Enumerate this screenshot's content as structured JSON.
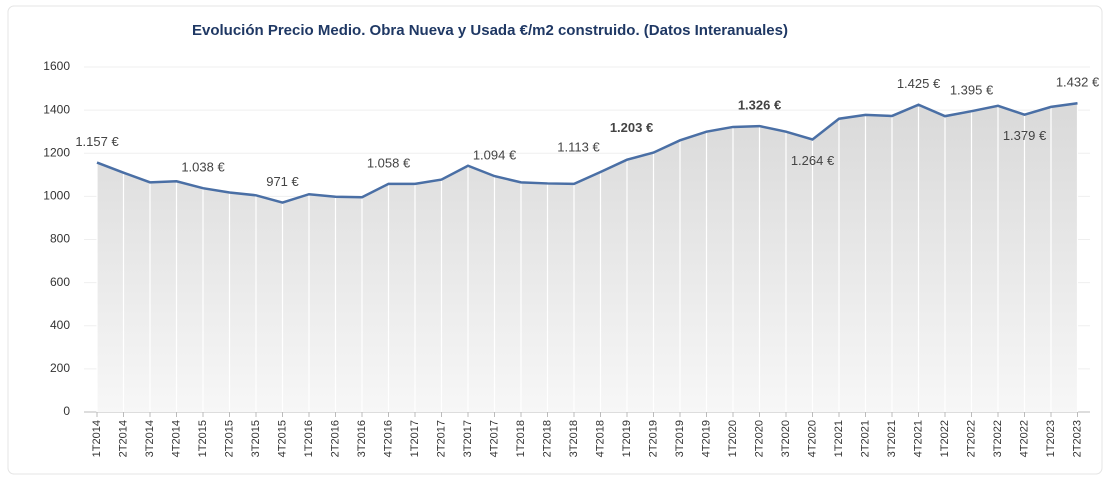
{
  "chart_data": {
    "type": "line",
    "title": "Evolución Precio Medio. Obra Nueva y Usada  €/m2 construido. (Datos Interanuales)",
    "categories": [
      "1T2014",
      "2T2014",
      "3T2014",
      "4T2014",
      "1T2015",
      "2T2015",
      "3T2015",
      "4T2015",
      "1T2016",
      "2T2016",
      "3T2016",
      "4T2016",
      "1T2017",
      "2T2017",
      "3T2017",
      "4T2017",
      "1T2018",
      "2T2018",
      "3T2018",
      "4T2018",
      "1T2019",
      "2T2019",
      "3T2019",
      "4T2019",
      "1T2020",
      "2T2020",
      "3T2020",
      "4T2020",
      "1T2021",
      "2T2021",
      "3T2021",
      "4T2021",
      "1T2022",
      "2T2022",
      "3T2022",
      "4T2022",
      "1T2023",
      "2T2023"
    ],
    "series": [
      {
        "name": null,
        "color": "#4a6fa5",
        "values": [
          1157,
          1110,
          1065,
          1070,
          1038,
          1018,
          1005,
          971,
          1010,
          998,
          996,
          1058,
          1058,
          1078,
          1142,
          1094,
          1065,
          1060,
          1058,
          1113,
          1170,
          1203,
          1260,
          1300,
          1322,
          1326,
          1300,
          1264,
          1360,
          1378,
          1373,
          1425,
          1372,
          1395,
          1420,
          1379,
          1415,
          1432
        ],
        "value_labels": [
          "1.157 €",
          null,
          null,
          null,
          "1.038 €",
          null,
          null,
          "971 €",
          null,
          null,
          null,
          "1.058 €",
          null,
          null,
          null,
          "1.094 €",
          null,
          null,
          null,
          "1.113 €",
          null,
          "1.203 €",
          null,
          null,
          null,
          "1.326 €",
          null,
          "1.264 €",
          null,
          null,
          null,
          "1.425 €",
          null,
          "1.395 €",
          null,
          "1.379 €",
          null,
          "1.432 €"
        ]
      }
    ],
    "ylim": [
      0,
      1600
    ],
    "yticks": [
      0,
      200,
      400,
      600,
      800,
      1000,
      1200,
      1400,
      1600
    ],
    "grid": true
  }
}
